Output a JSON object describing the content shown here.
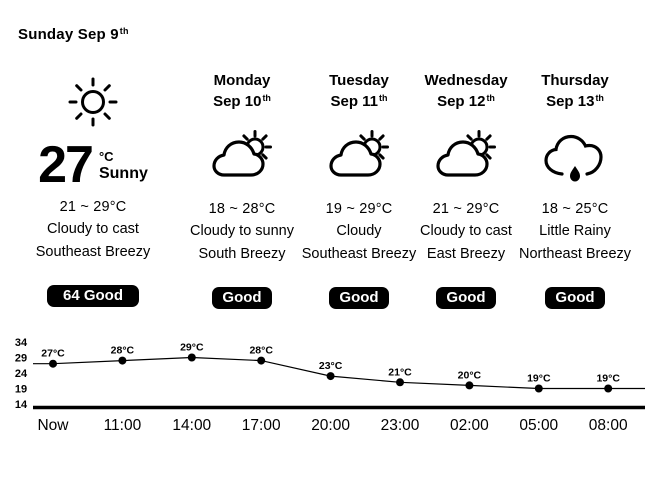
{
  "page": {
    "background": "#ffffff",
    "foreground": "#000000"
  },
  "header": {
    "date_label": "Sunday Sep 9",
    "date_suffix": "th"
  },
  "current": {
    "temp": "27",
    "unit": "°C",
    "condition": "Sunny",
    "icon": "sun",
    "range": "21 ~ 29°C",
    "sky": "Cloudy to cast",
    "wind": "Southeast Breezy",
    "air_quality": "64 Good"
  },
  "forecast": [
    {
      "day": "Monday",
      "date": "Sep 10",
      "date_suffix": "th",
      "icon": "cloud-sun",
      "range": "18 ~ 28°C",
      "sky": "Cloudy to sunny",
      "wind": "South Breezy",
      "air_quality": "Good"
    },
    {
      "day": "Tuesday",
      "date": "Sep 11",
      "date_suffix": "th",
      "icon": "cloud-sun",
      "range": "19 ~ 29°C",
      "sky": "Cloudy",
      "wind": "Southeast Breezy",
      "air_quality": "Good"
    },
    {
      "day": "Wednesday",
      "date": "Sep 12",
      "date_suffix": "th",
      "icon": "cloud-sun",
      "range": "21 ~ 29°C",
      "sky": "Cloudy to cast",
      "wind": "East Breezy",
      "air_quality": "Good"
    },
    {
      "day": "Thursday",
      "date": "Sep 13",
      "date_suffix": "th",
      "icon": "rain-cloud",
      "range": "18 ~ 25°C",
      "sky": "Little Rainy",
      "wind": "Northeast Breezy",
      "air_quality": "Good"
    }
  ],
  "chart_data": {
    "type": "line",
    "x": [
      "Now",
      "11:00",
      "14:00",
      "17:00",
      "20:00",
      "23:00",
      "02:00",
      "05:00",
      "08:00"
    ],
    "values": [
      27,
      28,
      29,
      28,
      23,
      21,
      20,
      19,
      19
    ],
    "point_labels": [
      "27°C",
      "28°C",
      "29°C",
      "28°C",
      "23°C",
      "21°C",
      "20°C",
      "19°C",
      "19°C"
    ],
    "y_ticks": [
      34,
      29,
      24,
      19,
      14
    ],
    "ylim": [
      14,
      34
    ],
    "grid": false,
    "legend": false,
    "line_color": "#000000",
    "marker": "filled-circle"
  }
}
